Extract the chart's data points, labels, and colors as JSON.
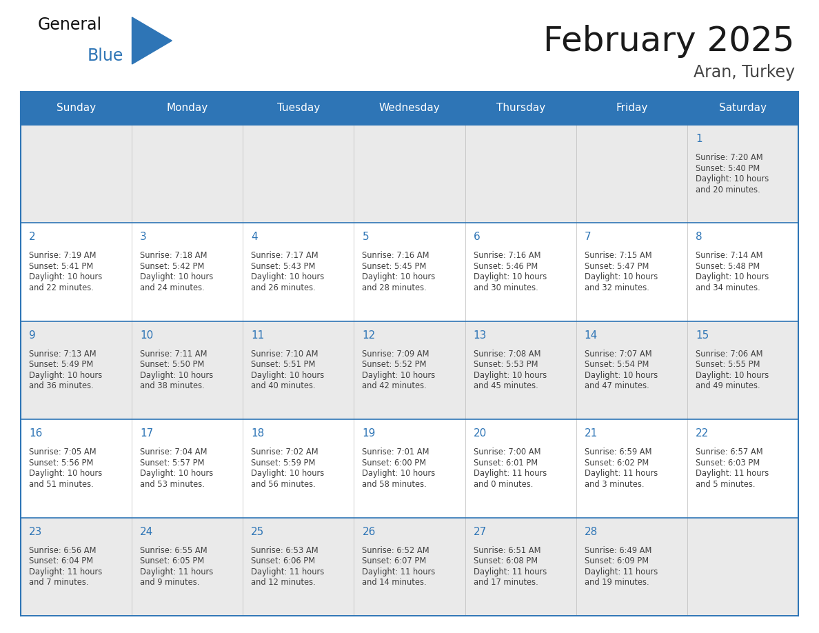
{
  "title": "February 2025",
  "subtitle": "Aran, Turkey",
  "days_of_week": [
    "Sunday",
    "Monday",
    "Tuesday",
    "Wednesday",
    "Thursday",
    "Friday",
    "Saturday"
  ],
  "header_bg": "#2E75B6",
  "header_text": "#FFFFFF",
  "row_bg_odd": "#EAEAEA",
  "row_bg_even": "#FFFFFF",
  "border_color": "#2E75B6",
  "day_number_color": "#2E75B6",
  "text_color": "#404040",
  "title_color": "#1a1a1a",
  "subtitle_color": "#444444",
  "logo_general_color": "#111111",
  "logo_blue_color": "#2E75B6",
  "logo_triangle_color": "#2E75B6",
  "calendar_data": [
    [
      {
        "day": null,
        "sunrise": null,
        "sunset": null,
        "daylight_line1": null,
        "daylight_line2": null
      },
      {
        "day": null,
        "sunrise": null,
        "sunset": null,
        "daylight_line1": null,
        "daylight_line2": null
      },
      {
        "day": null,
        "sunrise": null,
        "sunset": null,
        "daylight_line1": null,
        "daylight_line2": null
      },
      {
        "day": null,
        "sunrise": null,
        "sunset": null,
        "daylight_line1": null,
        "daylight_line2": null
      },
      {
        "day": null,
        "sunrise": null,
        "sunset": null,
        "daylight_line1": null,
        "daylight_line2": null
      },
      {
        "day": null,
        "sunrise": null,
        "sunset": null,
        "daylight_line1": null,
        "daylight_line2": null
      },
      {
        "day": 1,
        "sunrise": "7:20 AM",
        "sunset": "5:40 PM",
        "daylight_line1": "Daylight: 10 hours",
        "daylight_line2": "and 20 minutes."
      }
    ],
    [
      {
        "day": 2,
        "sunrise": "7:19 AM",
        "sunset": "5:41 PM",
        "daylight_line1": "Daylight: 10 hours",
        "daylight_line2": "and 22 minutes."
      },
      {
        "day": 3,
        "sunrise": "7:18 AM",
        "sunset": "5:42 PM",
        "daylight_line1": "Daylight: 10 hours",
        "daylight_line2": "and 24 minutes."
      },
      {
        "day": 4,
        "sunrise": "7:17 AM",
        "sunset": "5:43 PM",
        "daylight_line1": "Daylight: 10 hours",
        "daylight_line2": "and 26 minutes."
      },
      {
        "day": 5,
        "sunrise": "7:16 AM",
        "sunset": "5:45 PM",
        "daylight_line1": "Daylight: 10 hours",
        "daylight_line2": "and 28 minutes."
      },
      {
        "day": 6,
        "sunrise": "7:16 AM",
        "sunset": "5:46 PM",
        "daylight_line1": "Daylight: 10 hours",
        "daylight_line2": "and 30 minutes."
      },
      {
        "day": 7,
        "sunrise": "7:15 AM",
        "sunset": "5:47 PM",
        "daylight_line1": "Daylight: 10 hours",
        "daylight_line2": "and 32 minutes."
      },
      {
        "day": 8,
        "sunrise": "7:14 AM",
        "sunset": "5:48 PM",
        "daylight_line1": "Daylight: 10 hours",
        "daylight_line2": "and 34 minutes."
      }
    ],
    [
      {
        "day": 9,
        "sunrise": "7:13 AM",
        "sunset": "5:49 PM",
        "daylight_line1": "Daylight: 10 hours",
        "daylight_line2": "and 36 minutes."
      },
      {
        "day": 10,
        "sunrise": "7:11 AM",
        "sunset": "5:50 PM",
        "daylight_line1": "Daylight: 10 hours",
        "daylight_line2": "and 38 minutes."
      },
      {
        "day": 11,
        "sunrise": "7:10 AM",
        "sunset": "5:51 PM",
        "daylight_line1": "Daylight: 10 hours",
        "daylight_line2": "and 40 minutes."
      },
      {
        "day": 12,
        "sunrise": "7:09 AM",
        "sunset": "5:52 PM",
        "daylight_line1": "Daylight: 10 hours",
        "daylight_line2": "and 42 minutes."
      },
      {
        "day": 13,
        "sunrise": "7:08 AM",
        "sunset": "5:53 PM",
        "daylight_line1": "Daylight: 10 hours",
        "daylight_line2": "and 45 minutes."
      },
      {
        "day": 14,
        "sunrise": "7:07 AM",
        "sunset": "5:54 PM",
        "daylight_line1": "Daylight: 10 hours",
        "daylight_line2": "and 47 minutes."
      },
      {
        "day": 15,
        "sunrise": "7:06 AM",
        "sunset": "5:55 PM",
        "daylight_line1": "Daylight: 10 hours",
        "daylight_line2": "and 49 minutes."
      }
    ],
    [
      {
        "day": 16,
        "sunrise": "7:05 AM",
        "sunset": "5:56 PM",
        "daylight_line1": "Daylight: 10 hours",
        "daylight_line2": "and 51 minutes."
      },
      {
        "day": 17,
        "sunrise": "7:04 AM",
        "sunset": "5:57 PM",
        "daylight_line1": "Daylight: 10 hours",
        "daylight_line2": "and 53 minutes."
      },
      {
        "day": 18,
        "sunrise": "7:02 AM",
        "sunset": "5:59 PM",
        "daylight_line1": "Daylight: 10 hours",
        "daylight_line2": "and 56 minutes."
      },
      {
        "day": 19,
        "sunrise": "7:01 AM",
        "sunset": "6:00 PM",
        "daylight_line1": "Daylight: 10 hours",
        "daylight_line2": "and 58 minutes."
      },
      {
        "day": 20,
        "sunrise": "7:00 AM",
        "sunset": "6:01 PM",
        "daylight_line1": "Daylight: 11 hours",
        "daylight_line2": "and 0 minutes."
      },
      {
        "day": 21,
        "sunrise": "6:59 AM",
        "sunset": "6:02 PM",
        "daylight_line1": "Daylight: 11 hours",
        "daylight_line2": "and 3 minutes."
      },
      {
        "day": 22,
        "sunrise": "6:57 AM",
        "sunset": "6:03 PM",
        "daylight_line1": "Daylight: 11 hours",
        "daylight_line2": "and 5 minutes."
      }
    ],
    [
      {
        "day": 23,
        "sunrise": "6:56 AM",
        "sunset": "6:04 PM",
        "daylight_line1": "Daylight: 11 hours",
        "daylight_line2": "and 7 minutes."
      },
      {
        "day": 24,
        "sunrise": "6:55 AM",
        "sunset": "6:05 PM",
        "daylight_line1": "Daylight: 11 hours",
        "daylight_line2": "and 9 minutes."
      },
      {
        "day": 25,
        "sunrise": "6:53 AM",
        "sunset": "6:06 PM",
        "daylight_line1": "Daylight: 11 hours",
        "daylight_line2": "and 12 minutes."
      },
      {
        "day": 26,
        "sunrise": "6:52 AM",
        "sunset": "6:07 PM",
        "daylight_line1": "Daylight: 11 hours",
        "daylight_line2": "and 14 minutes."
      },
      {
        "day": 27,
        "sunrise": "6:51 AM",
        "sunset": "6:08 PM",
        "daylight_line1": "Daylight: 11 hours",
        "daylight_line2": "and 17 minutes."
      },
      {
        "day": 28,
        "sunrise": "6:49 AM",
        "sunset": "6:09 PM",
        "daylight_line1": "Daylight: 11 hours",
        "daylight_line2": "and 19 minutes."
      },
      {
        "day": null,
        "sunrise": null,
        "sunset": null,
        "daylight_line1": null,
        "daylight_line2": null
      }
    ]
  ]
}
